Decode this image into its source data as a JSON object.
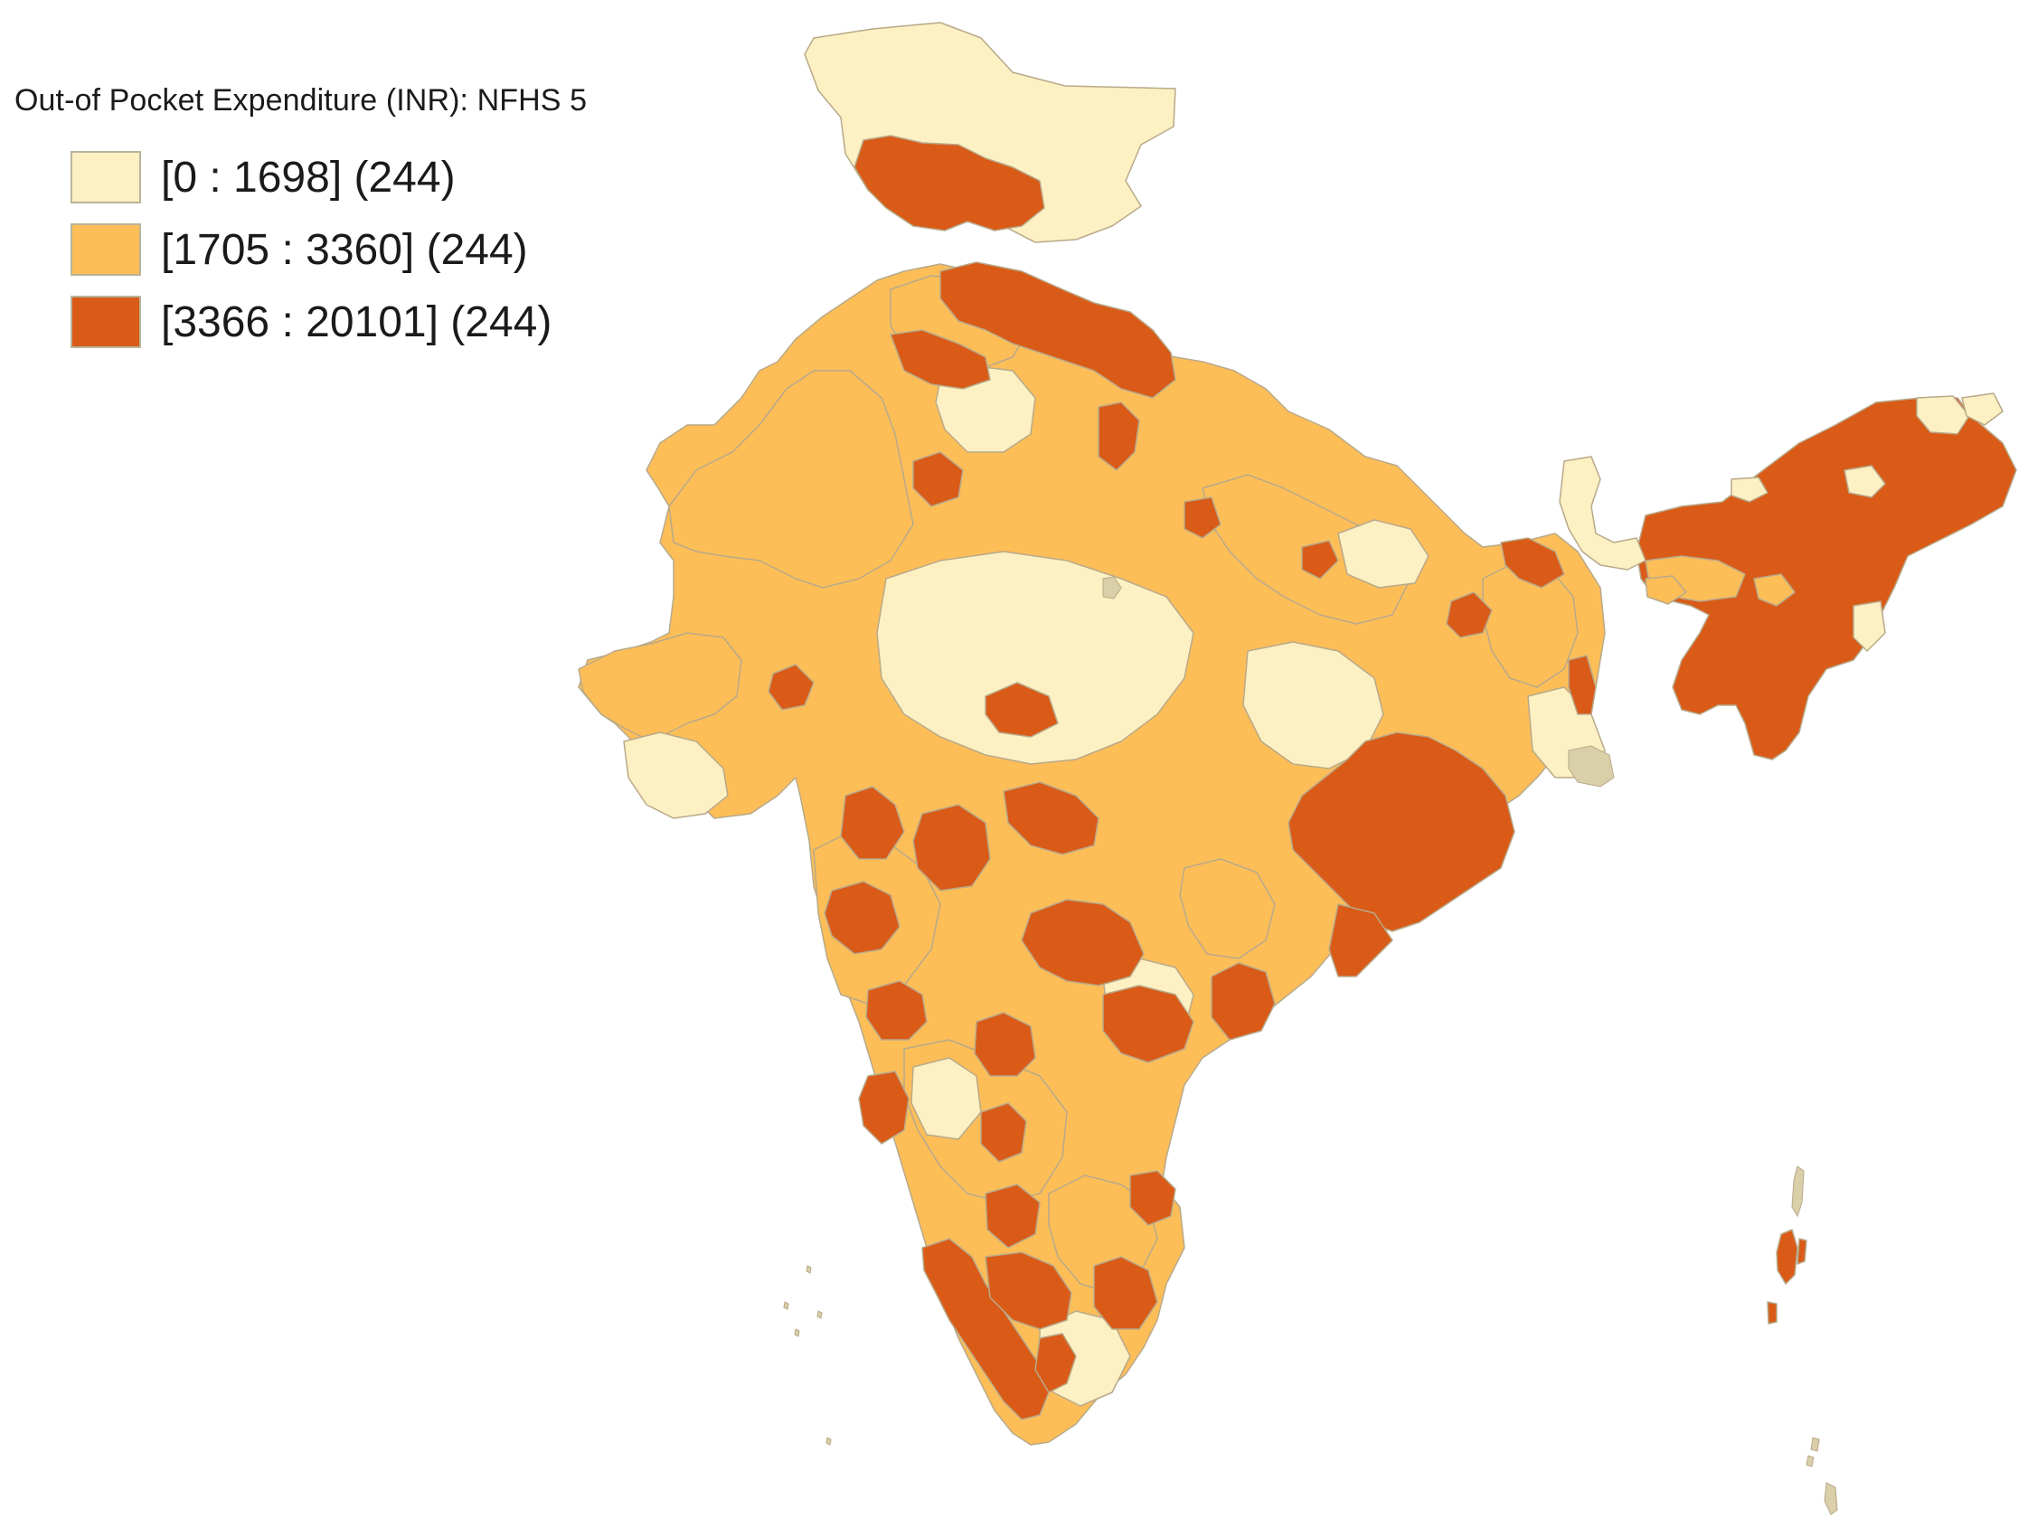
{
  "legend": {
    "title": "Out-of Pocket Expenditure (INR): NFHS 5",
    "classes": [
      {
        "label": "[0 : 1698] (244)",
        "color": "#fdf0c2"
      },
      {
        "label": "[1705 : 3360] (244)",
        "color": "#fdbe58"
      },
      {
        "label": "[3366 : 20101] (244)",
        "color": "#d95b17"
      }
    ]
  },
  "colors": {
    "background": "#ffffff",
    "district_border": "#b8a98a",
    "no_data": "#d9cfa8"
  }
}
